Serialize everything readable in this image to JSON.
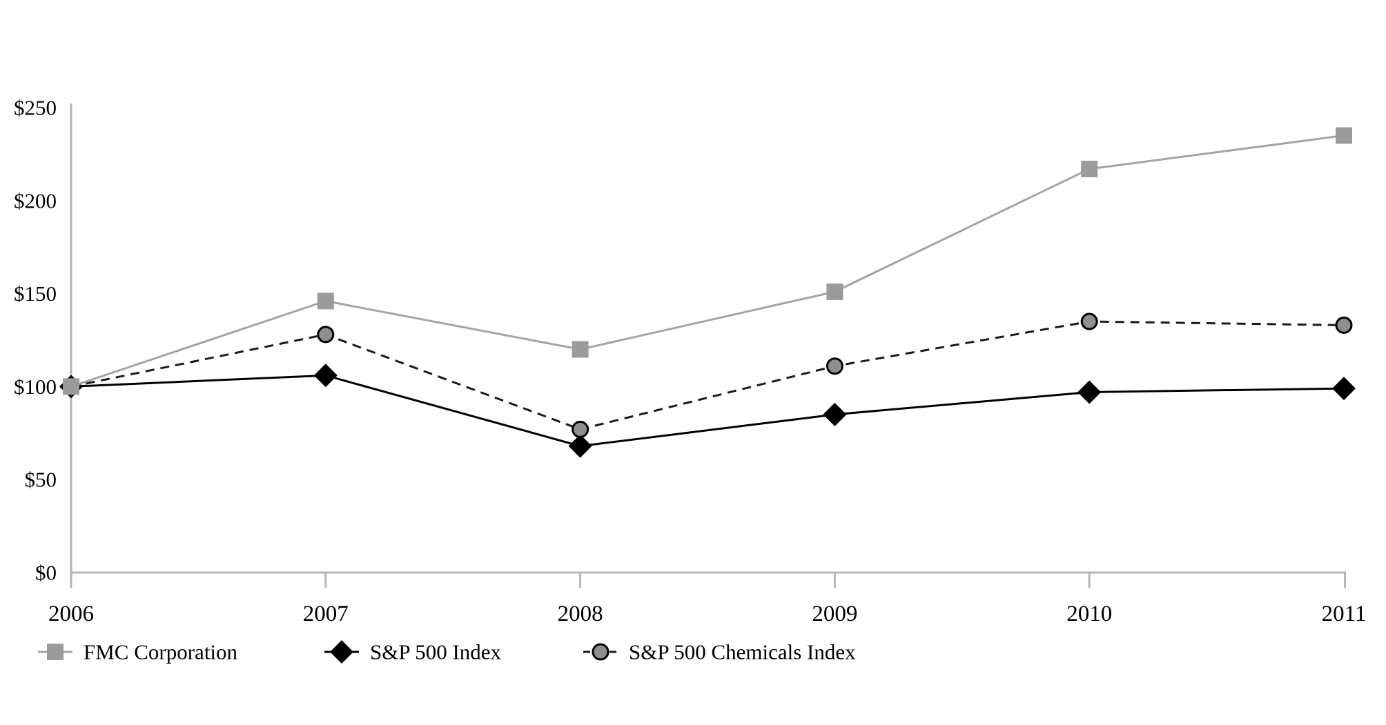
{
  "chart_data": {
    "type": "line",
    "title": "",
    "xlabel": "",
    "ylabel": "",
    "categories": [
      "2006",
      "2007",
      "2008",
      "2009",
      "2010",
      "2011"
    ],
    "series": [
      {
        "name": "FMC Corporation",
        "values": [
          100,
          146,
          120,
          151,
          217,
          235
        ],
        "color": "#a3a3a3",
        "marker": "square",
        "marker_fill": "#9b9b9b",
        "line_style": "solid"
      },
      {
        "name": "S&P 500 Index",
        "values": [
          100,
          106,
          68,
          85,
          97,
          99
        ],
        "color": "#000000",
        "marker": "diamond",
        "marker_fill": "#000000",
        "line_style": "solid"
      },
      {
        "name": "S&P 500 Chemicals Index",
        "values": [
          100,
          128,
          77,
          111,
          135,
          133
        ],
        "color": "#1a1a1a",
        "marker": "circle",
        "marker_fill": "#8f8f8f",
        "line_style": "dashed"
      }
    ],
    "y_ticks": [
      {
        "value": 0,
        "label": "$0"
      },
      {
        "value": 50,
        "label": "$50"
      },
      {
        "value": 100,
        "label": "$100"
      },
      {
        "value": 150,
        "label": "$150"
      },
      {
        "value": 200,
        "label": "$200"
      },
      {
        "value": 250,
        "label": "$250"
      }
    ],
    "ylim": [
      0,
      250
    ],
    "grid": false,
    "legend_position": "bottom",
    "axis_color": "#b5b5b5",
    "text_color": "#000000"
  }
}
